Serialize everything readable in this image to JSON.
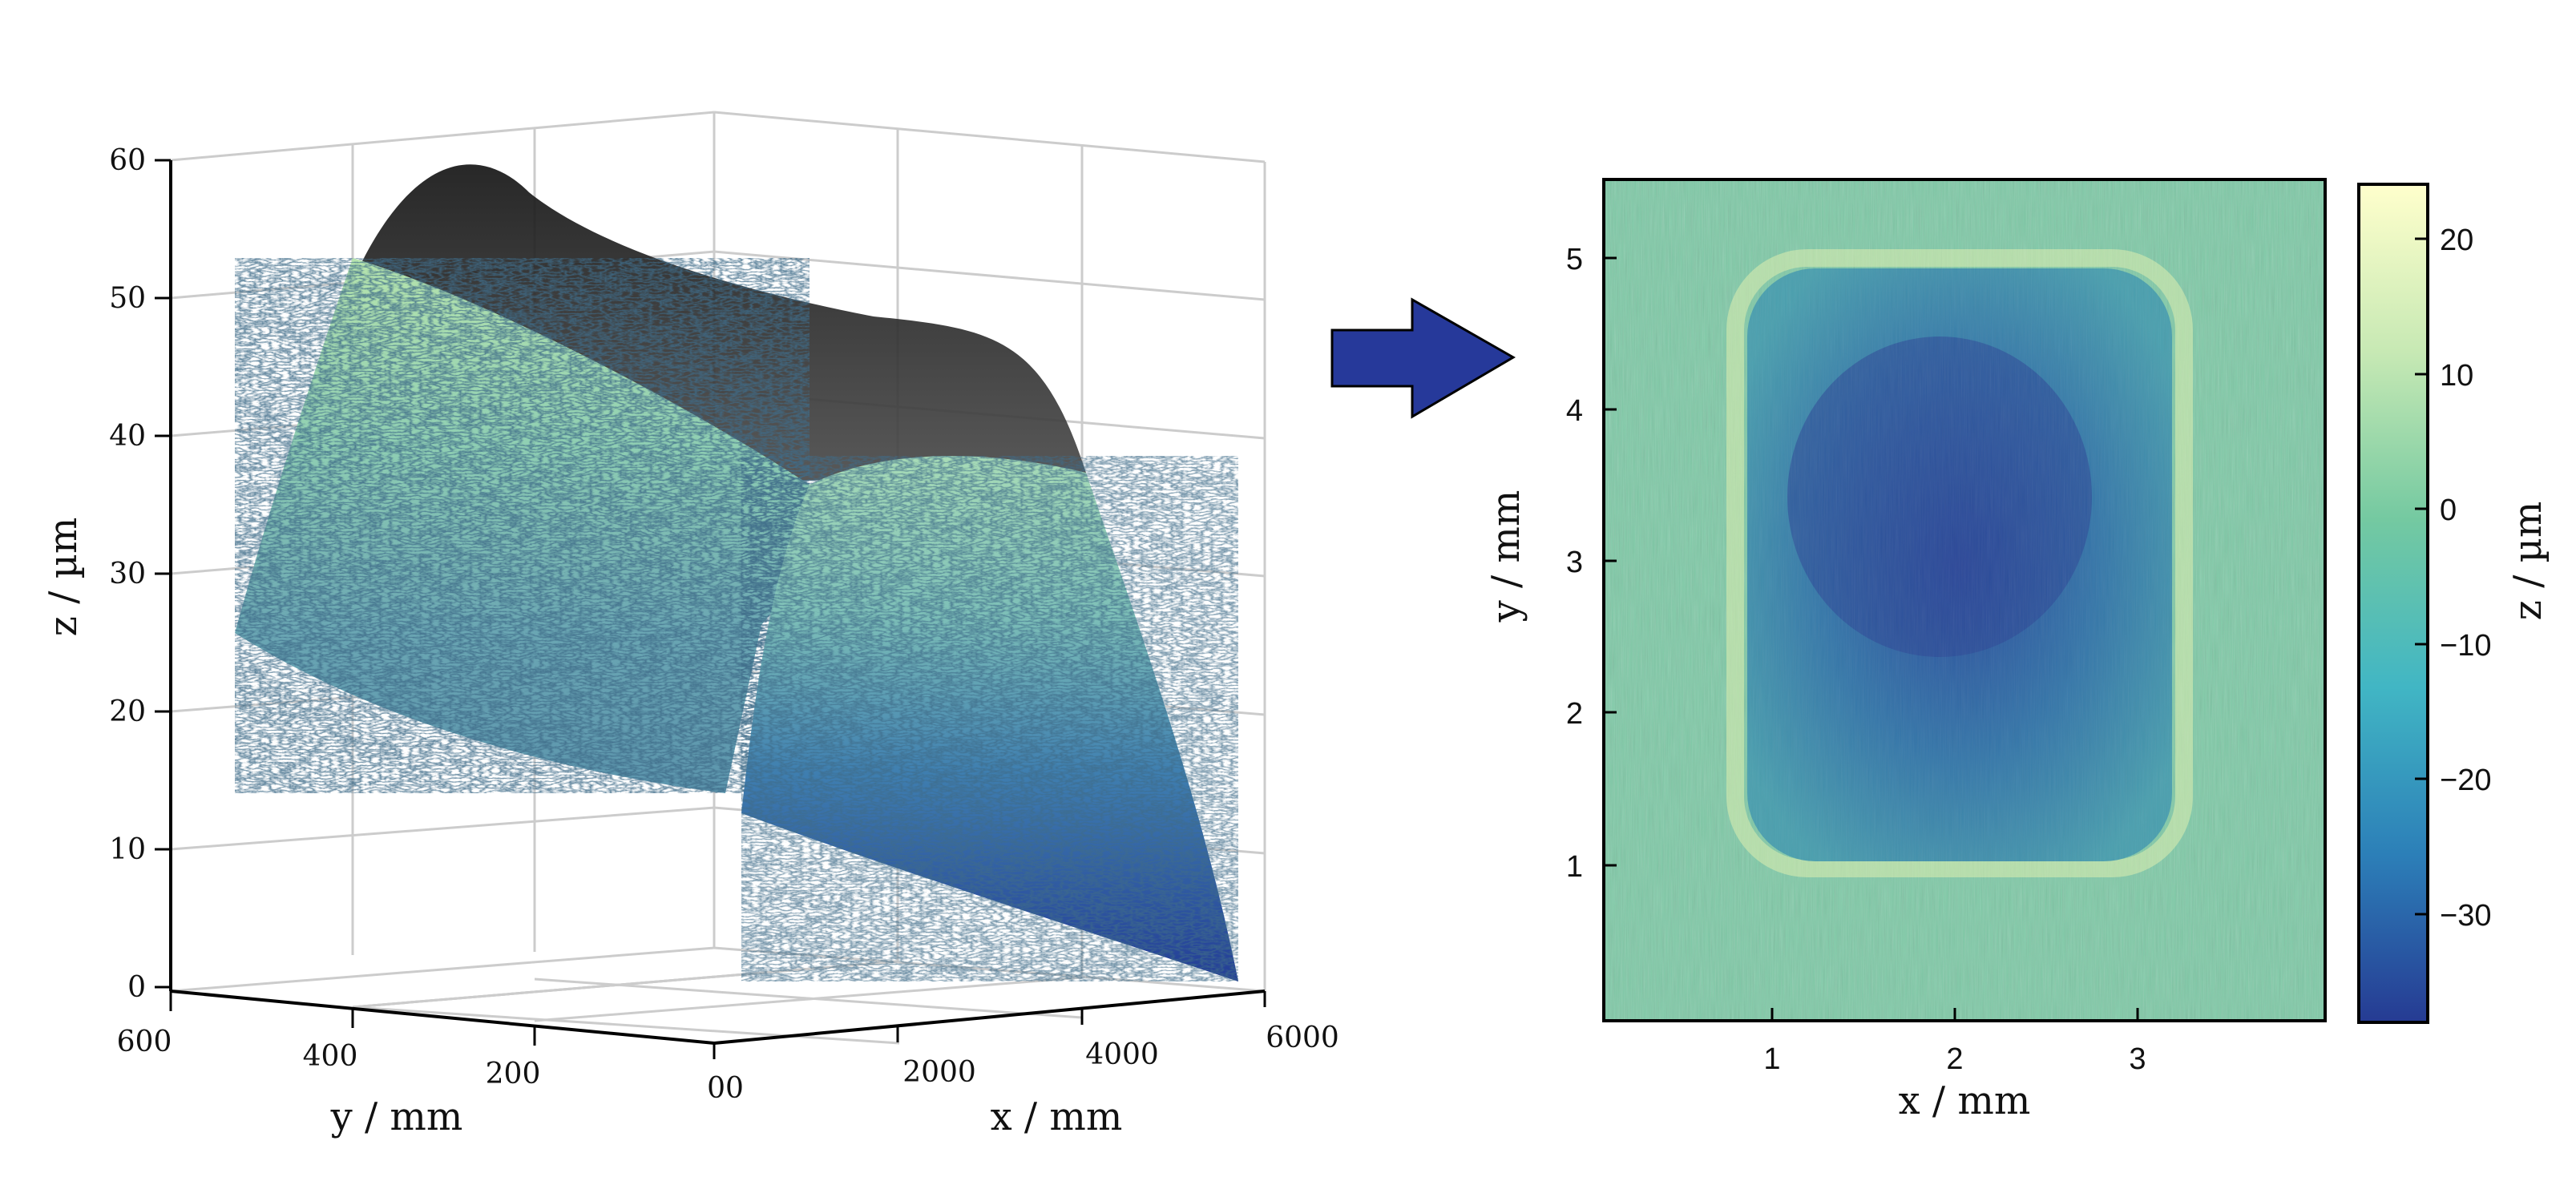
{
  "chart_data": [
    {
      "type": "surface3d",
      "title": "",
      "xlabel": "x / mm",
      "ylabel": "y / mm",
      "zlabel": "z / µm",
      "x_ticks": [
        "00",
        "2000",
        "4000",
        "6000"
      ],
      "y_ticks": [
        "600",
        "400",
        "200"
      ],
      "z_ticks": [
        "0",
        "10",
        "20",
        "30",
        "40",
        "50",
        "60"
      ],
      "xlim": [
        0,
        6000
      ],
      "ylim": [
        0,
        600
      ],
      "zlim": [
        0,
        60
      ],
      "grid": true,
      "colormap": "YlGnBu",
      "overlay": "transparent dark cylindrical fitted surface (curved sheet)"
    },
    {
      "type": "heatmap",
      "title": "",
      "xlabel": "x / mm",
      "ylabel": "y / mm",
      "colorbar_label": "z / µm",
      "x_ticks": [
        "1",
        "2",
        "3"
      ],
      "y_ticks": [
        "1",
        "2",
        "3",
        "4",
        "5"
      ],
      "colorbar_ticks": [
        "20",
        "10",
        "0",
        "−10",
        "−20",
        "−30"
      ],
      "xlim": [
        0,
        4.0
      ],
      "ylim": [
        0,
        5.5
      ],
      "zlim": [
        -38,
        24
      ],
      "colormap": "YlGnBu",
      "depression_region": {
        "x": [
          0.9,
          3.1
        ],
        "y": [
          1.1,
          5.0
        ],
        "min_z": -35
      }
    }
  ],
  "colors": {
    "arrow_fill": "#26399a",
    "grid": "#cccccc",
    "cmap_low": "#263b93",
    "cmap_mid": "#5fbfa0",
    "cmap_high": "#fafcc2"
  }
}
